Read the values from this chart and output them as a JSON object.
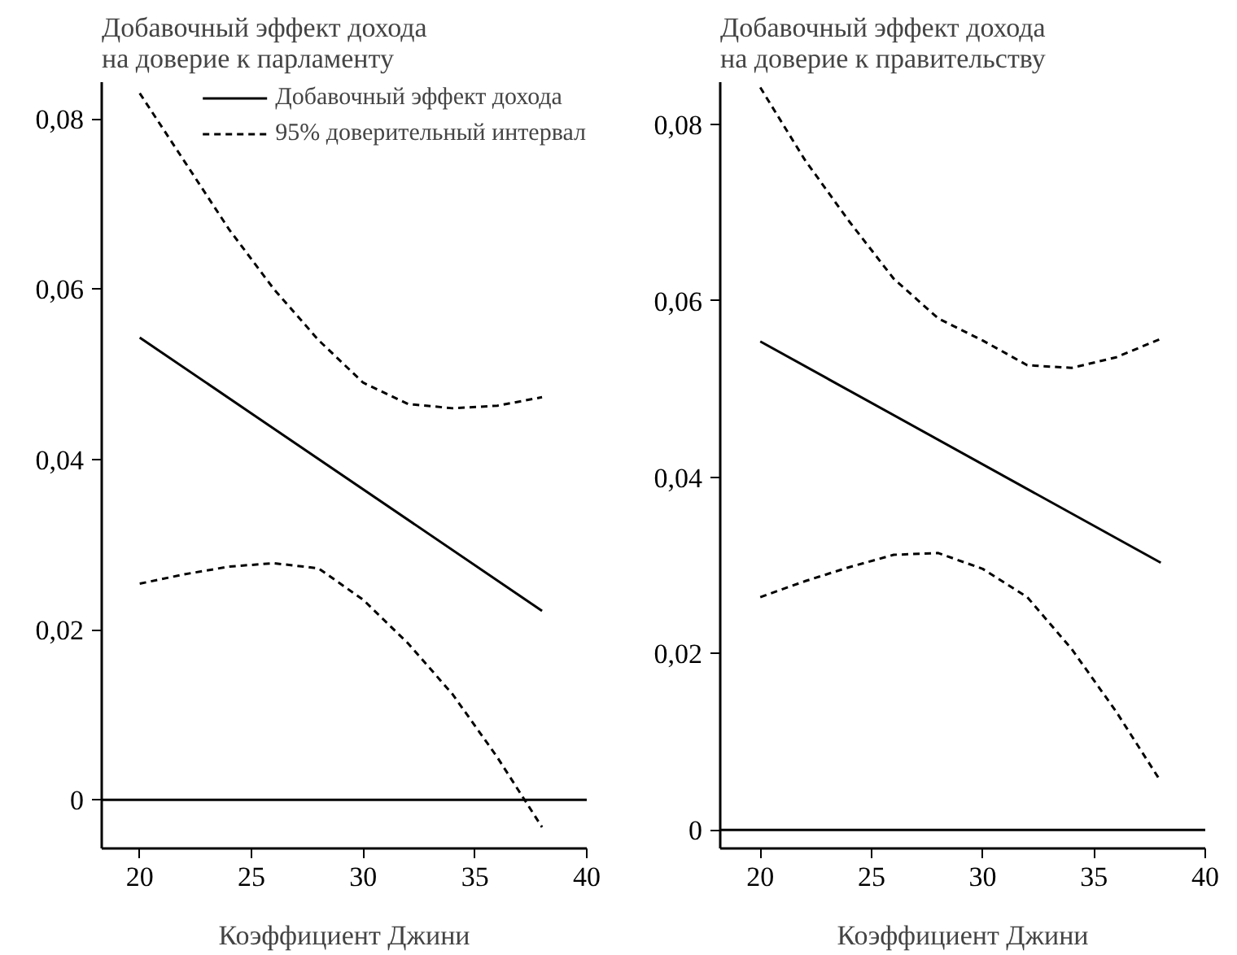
{
  "chart_data": [
    {
      "type": "line",
      "title": "Добавочный эффект дохода\nна доверие к парламенту",
      "xlabel": "Коэффициент Джини",
      "xlim": [
        18.3,
        40
      ],
      "xticks": [
        20,
        25,
        30,
        35,
        40
      ],
      "ylim": [
        -0.0057,
        0.0843
      ],
      "yticks": [
        0,
        {
          "value": 0.02,
          "label": "0,02"
        },
        {
          "value": 0.04,
          "label": "0,04"
        },
        {
          "value": 0.06,
          "label": "0,06"
        },
        {
          "value": 0.08,
          "label": "0,08"
        }
      ],
      "grid": false,
      "legend": "top right",
      "marker": "none",
      "ref_lines": [
        {
          "axis": "y",
          "value": 0,
          "color": "#000000",
          "line_style": "solid"
        }
      ],
      "series": [
        {
          "name": "Добавочный эффект дохода",
          "color": "#000000",
          "line_style": "solid",
          "x": [
            20,
            38
          ],
          "values": [
            0.0543,
            0.0222
          ]
        },
        {
          "name": "95% доверительный интервал",
          "color": "#000000",
          "line_style": "dashed",
          "x": [
            20,
            22,
            24,
            26,
            28,
            30,
            32,
            34,
            36,
            38
          ],
          "values": [
            0.083,
            0.075,
            0.067,
            0.06,
            0.054,
            0.049,
            0.0465,
            0.046,
            0.0463,
            0.0473
          ]
        },
        {
          "color": "#000000",
          "line_style": "dashed",
          "x": [
            20,
            22,
            24,
            26,
            28,
            30,
            32,
            34,
            36,
            38
          ],
          "values": [
            0.0254,
            0.0265,
            0.0274,
            0.0278,
            0.0272,
            0.0235,
            0.0184,
            0.0124,
            0.005,
            -0.0032
          ]
        }
      ]
    },
    {
      "type": "line",
      "title": "Добавочный эффект дохода\nна доверие к правительству",
      "xlabel": "Коэффициент Джини",
      "xlim": [
        18.2,
        40
      ],
      "xticks": [
        20,
        25,
        30,
        35,
        40
      ],
      "ylim": [
        -0.0021,
        0.0848
      ],
      "yticks": [
        0,
        {
          "value": 0.02,
          "label": "0,02"
        },
        {
          "value": 0.04,
          "label": "0,04"
        },
        {
          "value": 0.06,
          "label": "0,06"
        },
        {
          "value": 0.08,
          "label": "0,08"
        }
      ],
      "grid": false,
      "marker": "none",
      "ref_lines": [
        {
          "axis": "y",
          "value": 0,
          "color": "#000000",
          "line_style": "solid"
        }
      ],
      "series": [
        {
          "color": "#000000",
          "line_style": "solid",
          "x": [
            20,
            38
          ],
          "values": [
            0.0554,
            0.0303
          ]
        },
        {
          "color": "#000000",
          "line_style": "dashed",
          "x": [
            20,
            22,
            24,
            26,
            28,
            30,
            32,
            34,
            36,
            38
          ],
          "values": [
            0.0842,
            0.076,
            0.069,
            0.0625,
            0.058,
            0.0555,
            0.0527,
            0.0524,
            0.0536,
            0.0557
          ]
        },
        {
          "color": "#000000",
          "line_style": "dashed",
          "x": [
            20,
            22,
            24,
            26,
            28,
            30,
            32,
            34,
            36,
            38
          ],
          "values": [
            0.0264,
            0.0282,
            0.0298,
            0.0312,
            0.0314,
            0.0296,
            0.0264,
            0.0205,
            0.0134,
            0.0055
          ]
        }
      ]
    }
  ]
}
